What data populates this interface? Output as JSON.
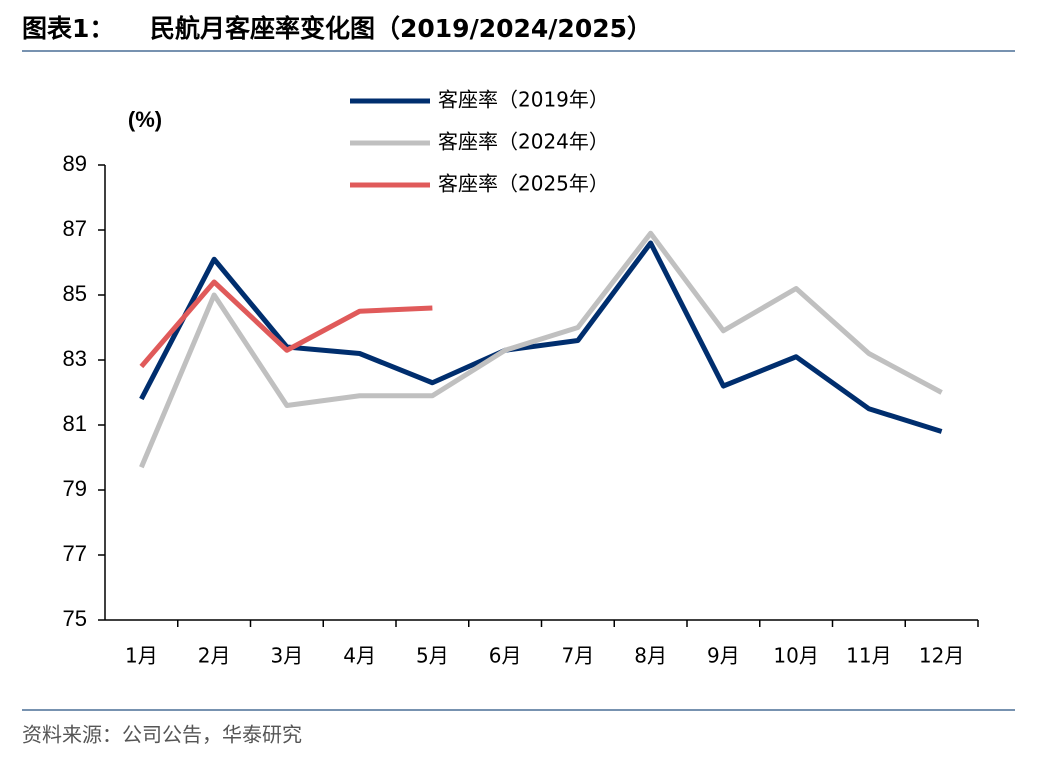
{
  "chart_data": {
    "type": "line",
    "title_label": "图表1：",
    "title": "民航月客座率变化图（2019/2024/2025）",
    "ylabel": "(%)",
    "categories": [
      "1月",
      "2月",
      "3月",
      "4月",
      "5月",
      "6月",
      "7月",
      "8月",
      "9月",
      "10月",
      "11月",
      "12月"
    ],
    "series": [
      {
        "name": "客座率（2019年）",
        "color": "#002e6e",
        "values": [
          81.8,
          86.1,
          83.4,
          83.2,
          82.3,
          83.3,
          83.6,
          86.6,
          82.2,
          83.1,
          81.5,
          80.8
        ]
      },
      {
        "name": "客座率（2024年）",
        "color": "#c0c0c0",
        "values": [
          79.7,
          85.0,
          81.6,
          81.9,
          81.9,
          83.3,
          84.0,
          86.9,
          83.9,
          85.2,
          83.2,
          82.0
        ]
      },
      {
        "name": "客座率（2025年）",
        "color": "#e05a5a",
        "values": [
          82.8,
          85.4,
          83.3,
          84.5,
          84.6,
          null,
          null,
          null,
          null,
          null,
          null,
          null
        ]
      }
    ],
    "ylim": [
      75,
      89
    ],
    "yticks": [
      75,
      77,
      79,
      81,
      83,
      85,
      87,
      89
    ],
    "legend": "top",
    "source": "资料来源：公司公告，华泰研究"
  }
}
